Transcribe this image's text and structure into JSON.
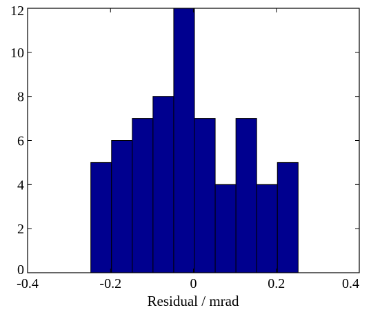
{
  "chart_data": {
    "type": "bar",
    "subtype": "histogram",
    "xlabel": "Residual / mrad",
    "ylabel": "",
    "title": "",
    "xlim": [
      -0.4,
      0.4
    ],
    "ylim": [
      0,
      12
    ],
    "xticks": [
      -0.4,
      -0.2,
      0,
      0.2,
      0.4
    ],
    "xtick_labels": [
      "-0.4",
      "-0.2",
      "0",
      "0.2",
      "0.4"
    ],
    "yticks": [
      0,
      2,
      4,
      6,
      8,
      10,
      12
    ],
    "ytick_labels": [
      "0",
      "2",
      "4",
      "6",
      "8",
      "10",
      "12"
    ],
    "bin_edges": [
      -0.2475,
      -0.1975,
      -0.1475,
      -0.0975,
      -0.0475,
      0.0025,
      0.0525,
      0.1025,
      0.1525,
      0.2025,
      0.2525
    ],
    "values": [
      5,
      6,
      7,
      8,
      12,
      7,
      4,
      7,
      4,
      5
    ],
    "bar_color": "#00008f",
    "edge_color": "#000000",
    "grid": false
  }
}
